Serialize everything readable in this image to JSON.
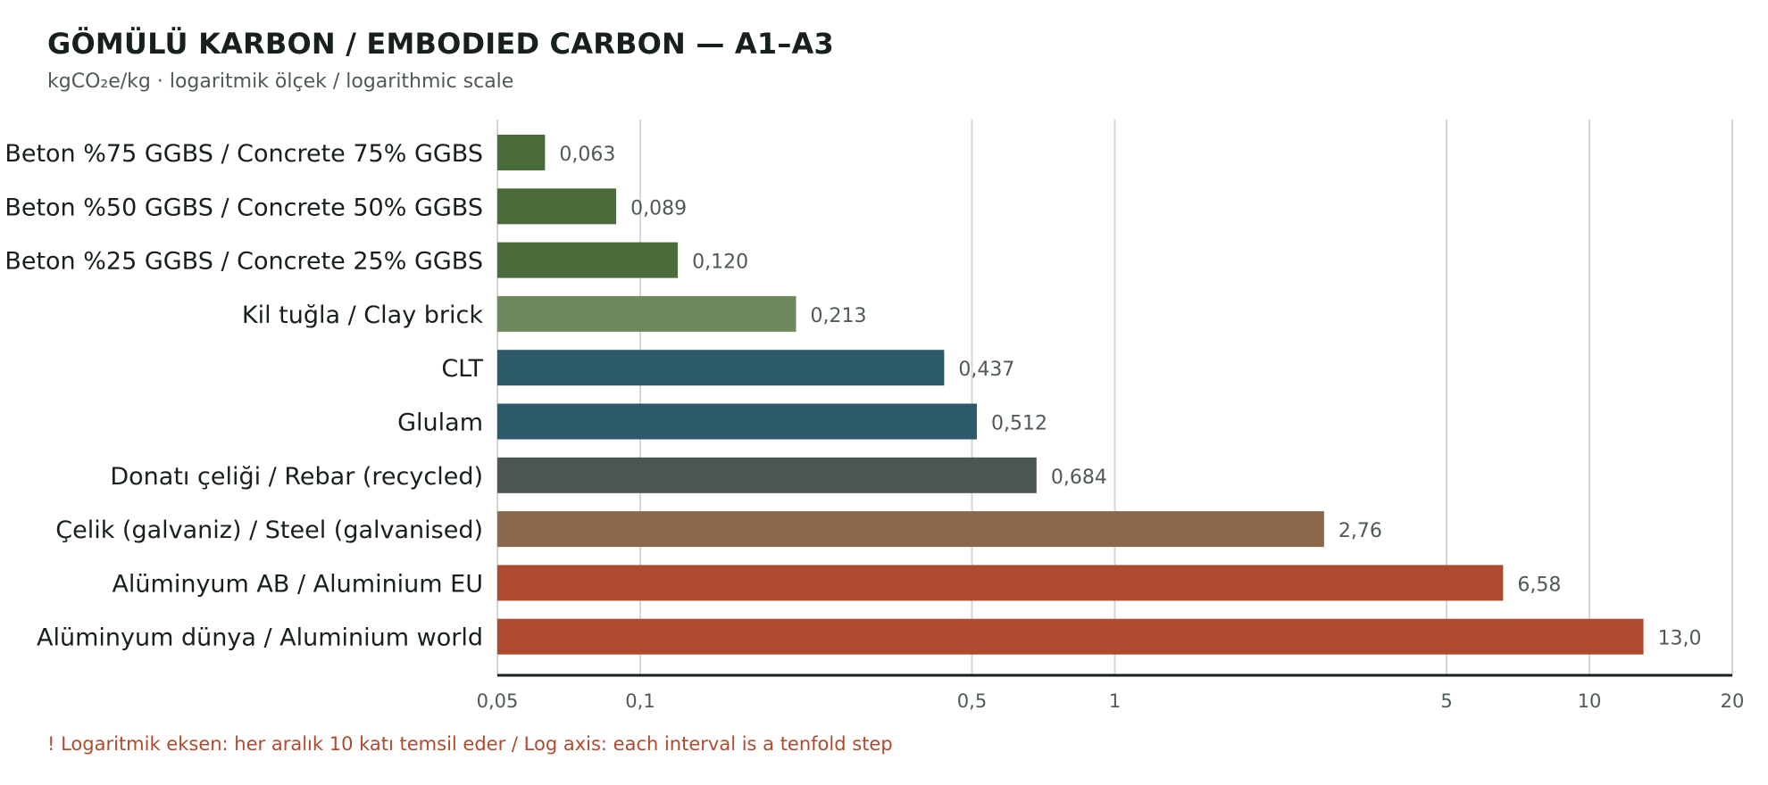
{
  "chart_data": {
    "type": "bar",
    "orientation": "horizontal",
    "title": "GÖMÜLÜ KARBON / EMBODIED CARBON — A1–A3",
    "subtitle": "kgCO₂e/kg · logaritmik ölçek / logarithmic scale",
    "xscale": "log",
    "xlim": [
      0.05,
      20
    ],
    "grid": true,
    "xticks": [
      {
        "value": 0.05,
        "label": "0,05"
      },
      {
        "value": 0.1,
        "label": "0,1"
      },
      {
        "value": 0.5,
        "label": "0,5"
      },
      {
        "value": 1,
        "label": "1"
      },
      {
        "value": 5,
        "label": "5"
      },
      {
        "value": 10,
        "label": "10"
      },
      {
        "value": 20,
        "label": "20"
      }
    ],
    "categories": [
      "Beton %75 GGBS / Concrete 75% GGBS",
      "Beton %50 GGBS / Concrete 50% GGBS",
      "Beton %25 GGBS / Concrete 25% GGBS",
      "Kil tuğla / Clay brick",
      "CLT",
      "Glulam",
      "Donatı çeliği / Rebar (recycled)",
      "Çelik (galvaniz) / Steel (galvanised)",
      "Alüminyum AB / Aluminium EU",
      "Alüminyum dünya / Aluminium world"
    ],
    "values": [
      0.063,
      0.089,
      0.12,
      0.213,
      0.437,
      0.512,
      0.684,
      2.76,
      6.58,
      13.0
    ],
    "value_labels": [
      "0,063",
      "0,089",
      "0,120",
      "0,213",
      "0,437",
      "0,512",
      "0,684",
      "2,76",
      "6,58",
      "13,0"
    ],
    "colors": [
      "#4a6b3a",
      "#4a6b3a",
      "#4a6b3a",
      "#6e8a5c",
      "#2c5a6a",
      "#2c5a6a",
      "#4a5750",
      "#8a6849",
      "#ae4a2f",
      "#ae4a2f"
    ],
    "note": "! Logaritmik eksen: her aralık 10 katı temsil eder / Log axis: each interval is a tenfold step"
  },
  "colors": {
    "text": "#17201c",
    "muted": "#4e5a56",
    "grid": "#d6d6d6",
    "axis": "#17201c",
    "note": "#b04a2f"
  }
}
